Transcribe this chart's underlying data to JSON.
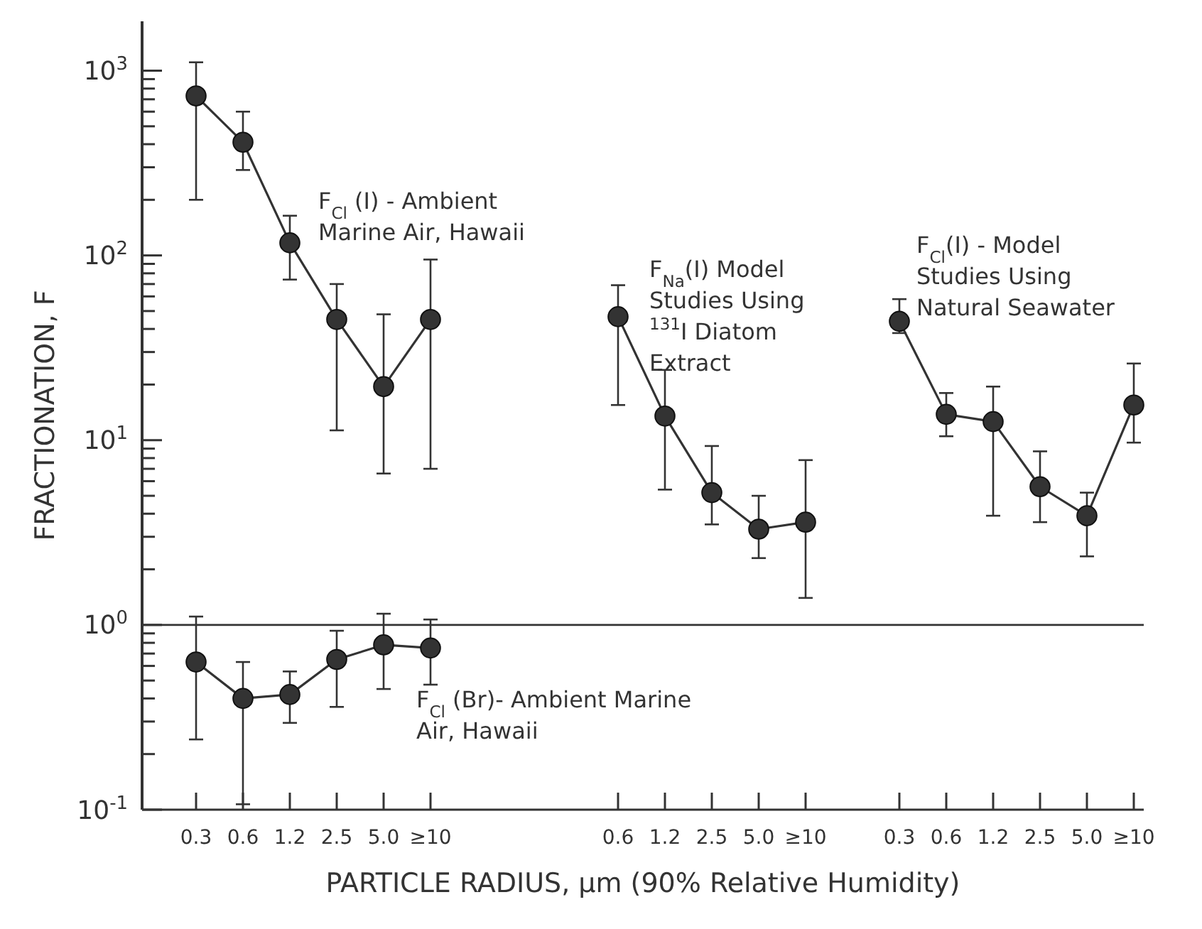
{
  "chart_data": {
    "type": "line",
    "xlabel": "PARTICLE RADIUS, μm (90% Relative Humidity)",
    "ylabel": "FRACTIONATION, F",
    "categories": [
      "0.3",
      "0.6",
      "1.2",
      "2.5",
      "5.0",
      "≥10",
      null,
      null,
      null,
      "0.6",
      "1.2",
      "2.5",
      "5.0",
      "≥10",
      null,
      "0.3",
      "0.6",
      "1.2",
      "2.5",
      "5.0",
      "≥10"
    ],
    "log": "y",
    "ylim": [
      0.1,
      1850
    ],
    "yticks": [
      {
        "value": 0.1,
        "label": "10$^{-1}$"
      },
      {
        "value": 0.2,
        "label": null
      },
      {
        "value": 0.3,
        "label": null
      },
      {
        "value": 0.4,
        "label": null
      },
      {
        "value": 0.5,
        "label": null
      },
      {
        "value": 0.6,
        "label": null
      },
      {
        "value": 0.7,
        "label": null
      },
      {
        "value": 0.8,
        "label": null
      },
      {
        "value": 0.9,
        "label": null
      },
      {
        "value": 1,
        "label": "10$^{0}$"
      },
      {
        "value": 2,
        "label": null
      },
      {
        "value": 3,
        "label": null
      },
      {
        "value": 4,
        "label": null
      },
      {
        "value": 5,
        "label": null
      },
      {
        "value": 6,
        "label": null
      },
      {
        "value": 7,
        "label": null
      },
      {
        "value": 8,
        "label": null
      },
      {
        "value": 9,
        "label": null
      },
      {
        "value": 10,
        "label": "10$^{1}$"
      },
      {
        "value": 20,
        "label": null
      },
      {
        "value": 30,
        "label": null
      },
      {
        "value": 40,
        "label": null
      },
      {
        "value": 50,
        "label": null
      },
      {
        "value": 60,
        "label": null
      },
      {
        "value": 70,
        "label": null
      },
      {
        "value": 80,
        "label": null
      },
      {
        "value": 90,
        "label": null
      },
      {
        "value": 100,
        "label": "10$^{2}$"
      },
      {
        "value": 200,
        "label": null
      },
      {
        "value": 300,
        "label": null
      },
      {
        "value": 400,
        "label": null
      },
      {
        "value": 500,
        "label": null
      },
      {
        "value": 600,
        "label": null
      },
      {
        "value": 700,
        "label": null
      },
      {
        "value": 800,
        "label": null
      },
      {
        "value": 900,
        "label": null
      },
      {
        "value": 1000,
        "label": "10$^{3}$"
      }
    ],
    "grid": false,
    "marker": "circle",
    "line_style": "solid",
    "ref_lines": [
      {
        "axis": "y",
        "value": 1,
        "label": null,
        "color": "#333333"
      }
    ],
    "series": [
      {
        "name": "F$_{Cl}$ (I) - Ambient Marine Air, Hawaii",
        "color": "#333333",
        "values": [
          730,
          410,
          117,
          45,
          19.5,
          45,
          null,
          null,
          null,
          null,
          null,
          null,
          null,
          null,
          null,
          null,
          null,
          null,
          null,
          null,
          null
        ],
        "errors": [
          [
            200,
            1110
          ],
          [
            290,
            600
          ],
          [
            74,
            164
          ],
          [
            11.3,
            70
          ],
          [
            6.6,
            48
          ],
          [
            7,
            95
          ],
          null,
          null,
          null,
          null,
          null,
          null,
          null,
          null,
          null,
          null,
          null,
          null,
          null,
          null,
          null
        ]
      },
      {
        "name": "F$_{Cl}$ (Br)- Ambient Marine Air, Hawaii",
        "color": "#333333",
        "values": [
          0.63,
          0.4,
          0.42,
          0.65,
          0.78,
          0.75,
          null,
          null,
          null,
          null,
          null,
          null,
          null,
          null,
          null,
          null,
          null,
          null,
          null,
          null,
          null
        ],
        "errors": [
          [
            0.24,
            1.11
          ],
          [
            0.107,
            0.63
          ],
          [
            0.295,
            0.56
          ],
          [
            0.36,
            0.93
          ],
          [
            0.45,
            1.15
          ],
          [
            0.475,
            1.07
          ],
          null,
          null,
          null,
          null,
          null,
          null,
          null,
          null,
          null,
          null,
          null,
          null,
          null,
          null,
          null
        ]
      },
      {
        "name": "F$_{Na}$(I) Model Studies Using $^{131}$I Diatom Extract",
        "color": "#333333",
        "values": [
          null,
          null,
          null,
          null,
          null,
          null,
          null,
          null,
          null,
          46.6,
          13.5,
          5.2,
          3.3,
          3.6,
          null,
          null,
          null,
          null,
          null,
          null,
          null
        ],
        "errors": [
          null,
          null,
          null,
          null,
          null,
          null,
          null,
          null,
          null,
          [
            15.5,
            69
          ],
          [
            5.4,
            24
          ],
          [
            3.5,
            9.3
          ],
          [
            2.3,
            5
          ],
          [
            1.4,
            7.8
          ],
          null,
          null,
          null,
          null,
          null,
          null,
          null
        ]
      },
      {
        "name": "F$_{Cl}$(I) - Model Studies Using Natural Seawater",
        "color": "#333333",
        "values": [
          null,
          null,
          null,
          null,
          null,
          null,
          null,
          null,
          null,
          null,
          null,
          null,
          null,
          null,
          null,
          44,
          13.8,
          12.6,
          5.6,
          3.9,
          15.5
        ],
        "errors": [
          null,
          null,
          null,
          null,
          null,
          null,
          null,
          null,
          null,
          null,
          null,
          null,
          null,
          null,
          null,
          [
            38,
            58
          ],
          [
            10.5,
            18
          ],
          [
            3.9,
            19.5
          ],
          [
            3.6,
            8.7
          ],
          [
            2.35,
            5.2
          ],
          [
            9.7,
            26
          ]
        ]
      }
    ]
  }
}
